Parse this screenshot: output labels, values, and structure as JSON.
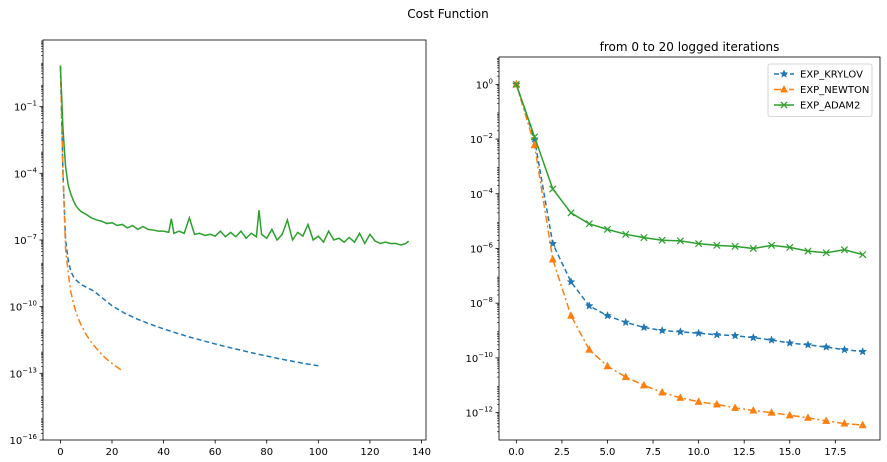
{
  "figure": {
    "suptitle": "Cost Function"
  },
  "colors": {
    "krylov": "#1f77b4",
    "newton": "#ff7f0e",
    "adam2": "#2ca02c",
    "axis": "#000000",
    "legend_border": "#cccccc"
  },
  "chart_data": [
    {
      "type": "line",
      "title": "",
      "xlabel": "",
      "ylabel": "",
      "yscale": "log",
      "xlim": [
        -6.75,
        141.75
      ],
      "ylim": [
        1e-16,
        100.0
      ],
      "xticks": [
        {
          "value": 0,
          "label": "0"
        },
        {
          "value": 20,
          "label": "20"
        },
        {
          "value": 40,
          "label": "40"
        },
        {
          "value": 60,
          "label": "60"
        },
        {
          "value": 80,
          "label": "80"
        },
        {
          "value": 100,
          "label": "100"
        },
        {
          "value": 120,
          "label": "120"
        },
        {
          "value": 140,
          "label": "140"
        }
      ],
      "yticks": [
        {
          "exp": -16,
          "base": "10",
          "sup": "−16"
        },
        {
          "exp": -13,
          "base": "10",
          "sup": "−13"
        },
        {
          "exp": -10,
          "base": "10",
          "sup": "−10"
        },
        {
          "exp": -7,
          "base": "10",
          "sup": "−7"
        },
        {
          "exp": -4,
          "base": "10",
          "sup": "−4"
        },
        {
          "exp": -1,
          "base": "10",
          "sup": "−1"
        }
      ],
      "grid": false,
      "series": [
        {
          "key": "krylov",
          "style": "dashed",
          "x": [
            0,
            1,
            2,
            3,
            4,
            5,
            6,
            8,
            10,
            13,
            16,
            20,
            25,
            30,
            35,
            40,
            45,
            50,
            55,
            60,
            65,
            70,
            75,
            80,
            85,
            90,
            95,
            100
          ],
          "y": [
            7.0,
            0.0001,
            1e-07,
            1.3e-08,
            4e-09,
            2.3e-09,
            1.6e-09,
            1e-09,
            7.5e-10,
            5e-10,
            2.6e-10,
            1.1e-10,
            5e-11,
            2.7e-11,
            1.6e-11,
            1e-11,
            6.5e-12,
            4.3e-12,
            3e-12,
            2.1e-12,
            1.5e-12,
            1.1e-12,
            8e-13,
            6e-13,
            4.5e-13,
            3.5e-13,
            2.7e-13,
            2.2e-13
          ]
        },
        {
          "key": "newton",
          "style": "dashdot",
          "x": [
            0,
            1,
            2,
            3,
            4,
            5,
            6,
            7,
            8,
            9,
            10,
            12,
            14,
            16,
            18,
            20,
            22,
            24
          ],
          "y": [
            7.0,
            0.0001,
            4e-08,
            3.5e-09,
            5e-10,
            1.5e-10,
            6e-11,
            2.8e-11,
            1.5e-11,
            9e-12,
            5.5e-12,
            2.5e-12,
            1.3e-12,
            7e-13,
            4.3e-13,
            2.8e-13,
            1.9e-13,
            1.3e-13
          ]
        },
        {
          "key": "adam2",
          "style": "solid",
          "x": [
            0,
            1,
            2,
            3,
            4,
            5,
            6,
            7,
            8,
            10,
            12,
            14,
            16,
            18,
            20,
            22,
            24,
            26,
            28,
            30,
            32,
            34,
            36,
            38,
            40,
            42,
            43,
            44,
            46,
            48,
            50,
            52,
            54,
            56,
            58,
            60,
            62,
            64,
            66,
            68,
            70,
            72,
            74,
            76,
            77,
            78,
            80,
            82,
            84,
            86,
            88,
            90,
            92,
            94,
            96,
            98,
            100,
            102,
            104,
            106,
            108,
            110,
            112,
            114,
            116,
            118,
            120,
            122,
            124,
            126,
            128,
            130,
            132,
            134,
            135
          ],
          "y": [
            7.0,
            0.01,
            0.0002,
            3e-05,
            1.2e-05,
            6e-06,
            3.5e-06,
            2.5e-06,
            1.9e-06,
            1.4e-06,
            1e-06,
            8e-07,
            7e-07,
            5.5e-07,
            6e-07,
            4.5e-07,
            5e-07,
            3.5e-07,
            4.5e-07,
            3e-07,
            4e-07,
            3e-07,
            2.8e-07,
            2.5e-07,
            2.5e-07,
            2.2e-07,
            9e-07,
            2e-07,
            2.5e-07,
            2e-07,
            1e-06,
            1.8e-07,
            2e-07,
            1.6e-07,
            1.8e-07,
            1.5e-07,
            2.5e-07,
            1.4e-07,
            2.2e-07,
            1.4e-07,
            2.5e-07,
            1.2e-07,
            2e-07,
            1.4e-07,
            2.2e-06,
            1.8e-07,
            1.2e-07,
            3e-07,
            1e-07,
            1.8e-07,
            8e-07,
            1e-07,
            2.2e-07,
            1.5e-07,
            5e-07,
            1e-07,
            1.5e-07,
            8e-08,
            2.5e-07,
            1e-07,
            1.2e-07,
            8e-08,
            1.3e-07,
            8e-08,
            2e-07,
            7e-08,
            1.8e-07,
            9e-08,
            7e-08,
            8e-08,
            7e-08,
            7e-08,
            6e-08,
            7e-08,
            9e-08
          ]
        }
      ]
    },
    {
      "type": "line",
      "title": "from 0 to 20 logged iterations",
      "xlabel": "",
      "ylabel": "",
      "yscale": "log",
      "xlim": [
        -0.95,
        19.95
      ],
      "ylim": [
        1e-13,
        10.0
      ],
      "xticks": [
        {
          "value": 0,
          "label": "0.0"
        },
        {
          "value": 2.5,
          "label": "2.5"
        },
        {
          "value": 5,
          "label": "5.0"
        },
        {
          "value": 7.5,
          "label": "7.5"
        },
        {
          "value": 10,
          "label": "10.0"
        },
        {
          "value": 12.5,
          "label": "12.5"
        },
        {
          "value": 15,
          "label": "15.0"
        },
        {
          "value": 17.5,
          "label": "17.5"
        }
      ],
      "yticks": [
        {
          "exp": -12,
          "base": "10",
          "sup": "−12"
        },
        {
          "exp": -10,
          "base": "10",
          "sup": "−10"
        },
        {
          "exp": -8,
          "base": "10",
          "sup": "−8"
        },
        {
          "exp": -6,
          "base": "10",
          "sup": "−6"
        },
        {
          "exp": -4,
          "base": "10",
          "sup": "−4"
        },
        {
          "exp": -2,
          "base": "10",
          "sup": "−2"
        },
        {
          "exp": 0,
          "base": "10",
          "sup": "0"
        }
      ],
      "grid": false,
      "legend": "top-right",
      "series": [
        {
          "key": "krylov",
          "name": "EXP_KRYLOV",
          "style": "dashed",
          "marker": "star",
          "x": [
            0,
            1,
            2,
            3,
            4,
            5,
            6,
            7,
            8,
            9,
            10,
            11,
            12,
            13,
            14,
            15,
            16,
            17,
            18,
            19
          ],
          "y": [
            1.0,
            0.01,
            1.5e-06,
            6e-08,
            8e-09,
            3.5e-09,
            2e-09,
            1.3e-09,
            1e-09,
            9e-10,
            8e-10,
            7e-10,
            6.5e-10,
            5.5e-10,
            4.5e-10,
            3.5e-10,
            3e-10,
            2.5e-10,
            2e-10,
            1.7e-10
          ]
        },
        {
          "key": "newton",
          "name": "EXP_NEWTON",
          "style": "dashdot",
          "marker": "triangle",
          "x": [
            0,
            1,
            2,
            3,
            4,
            5,
            6,
            7,
            8,
            9,
            10,
            11,
            12,
            13,
            14,
            15,
            16,
            17,
            18,
            19
          ],
          "y": [
            1.0,
            0.006,
            4e-07,
            3.5e-09,
            2e-10,
            5e-11,
            2e-11,
            1e-11,
            5.5e-12,
            3.5e-12,
            2.5e-12,
            2e-12,
            1.5e-12,
            1.2e-12,
            1e-12,
            8e-13,
            6.5e-13,
            5e-13,
            4e-13,
            3.5e-13
          ]
        },
        {
          "key": "adam2",
          "name": "EXP_ADAM2",
          "style": "solid",
          "marker": "x",
          "x": [
            0,
            1,
            2,
            3,
            4,
            5,
            6,
            7,
            8,
            9,
            10,
            11,
            12,
            13,
            14,
            15,
            16,
            17,
            18,
            19
          ],
          "y": [
            1.0,
            0.012,
            0.00015,
            2e-05,
            8e-06,
            5e-06,
            3.3e-06,
            2.5e-06,
            2e-06,
            1.9e-06,
            1.5e-06,
            1.3e-06,
            1.2e-06,
            1e-06,
            1.3e-06,
            1.1e-06,
            8e-07,
            7e-07,
            9e-07,
            6e-07
          ]
        }
      ]
    }
  ]
}
